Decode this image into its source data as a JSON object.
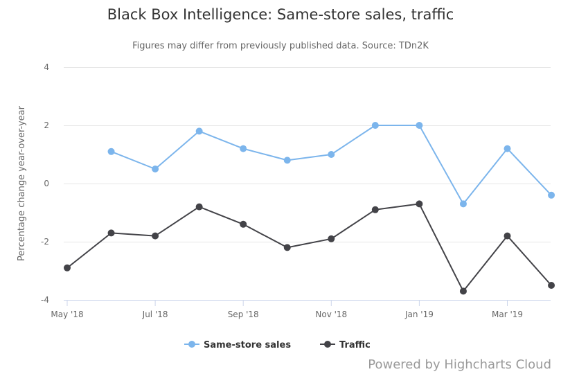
{
  "chart_data": {
    "type": "line",
    "title": "Black Box Intelligence: Same-store sales, traffic",
    "subtitle": "Figures may differ from previously published data. Source: TDn2K",
    "ylabel": "Percentage change year-over-year",
    "xlabel": "",
    "ylim": [
      -4,
      4
    ],
    "yticks": [
      4,
      2,
      0,
      -2,
      -4
    ],
    "xticks": [
      "May '18",
      "Jul '18",
      "Sep '18",
      "Nov '18",
      "Jan '19",
      "Mar '19"
    ],
    "xtick_months": [
      "2018-05",
      "2018-07",
      "2018-09",
      "2018-11",
      "2019-01",
      "2019-03"
    ],
    "x": [
      "2018-05",
      "2018-06",
      "2018-07",
      "2018-08",
      "2018-09",
      "2018-10",
      "2018-11",
      "2018-12",
      "2019-01",
      "2019-02",
      "2019-03",
      "2019-04"
    ],
    "grid": true,
    "legend_position": "bottom-center",
    "series": [
      {
        "name": "Same-store sales",
        "color": "#7cb5ec",
        "values": [
          null,
          1.1,
          0.5,
          1.8,
          1.2,
          0.8,
          1.0,
          2.0,
          2.0,
          -0.7,
          1.2,
          -0.4
        ]
      },
      {
        "name": "Traffic",
        "color": "#434348",
        "values": [
          -2.9,
          -1.7,
          -1.8,
          -0.8,
          -1.4,
          -2.2,
          -1.9,
          -0.9,
          -0.7,
          -3.7,
          -1.8,
          -3.5
        ]
      }
    ]
  },
  "credits": "Powered by Highcharts Cloud"
}
